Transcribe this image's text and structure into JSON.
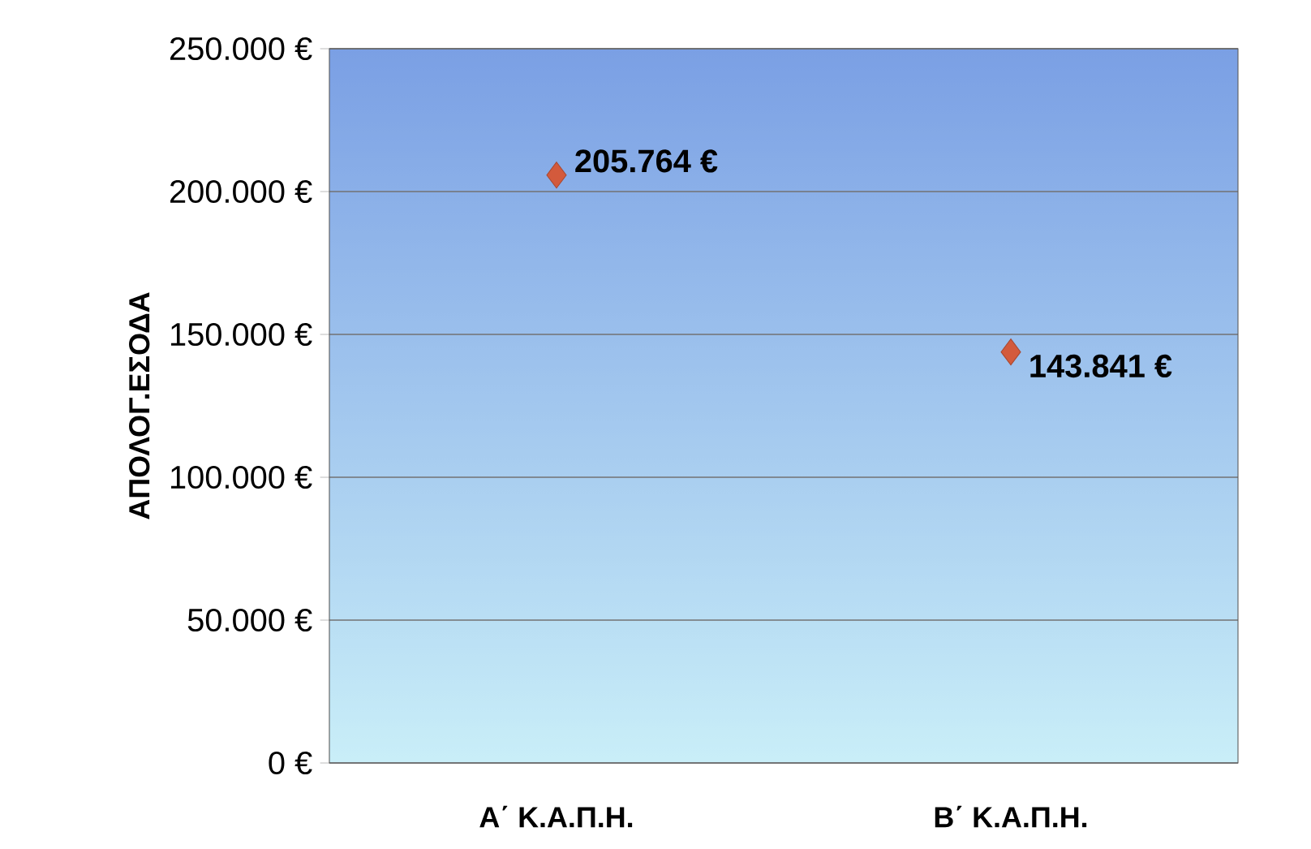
{
  "chart_data": {
    "type": "scatter",
    "ylabel": "ΑΠΟΛΟΓ.ΕΣΟΔΑ",
    "categories": [
      "Α΄ Κ.Α.Π.Η.",
      "Β΄ Κ.Α.Π.Η."
    ],
    "series": [
      {
        "color": "#d35a3c",
        "values": [
          205764,
          143841
        ],
        "value_labels": [
          "205.764 €",
          "143.841 €"
        ]
      }
    ],
    "ylim": [
      0,
      250000
    ],
    "yticks": [
      {
        "value": 0,
        "label": "0 €"
      },
      {
        "value": 50000,
        "label": "50.000 €"
      },
      {
        "value": 100000,
        "label": "100.000 €"
      },
      {
        "value": 150000,
        "label": "150.000 €"
      },
      {
        "value": 200000,
        "label": "200.000 €"
      },
      {
        "value": 250000,
        "label": "250.000 €"
      }
    ],
    "grid": "y",
    "marker": "diamond"
  }
}
